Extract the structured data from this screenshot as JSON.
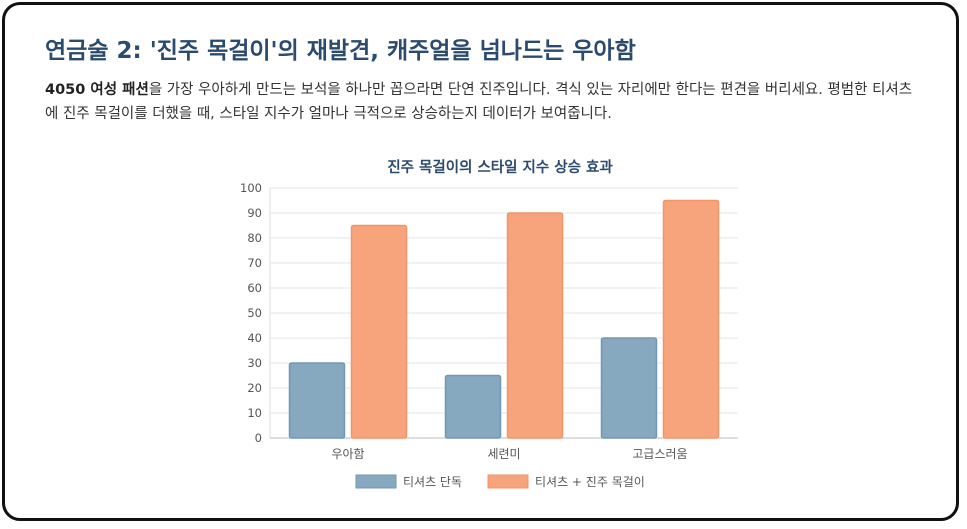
{
  "heading": "연금술 2: '진주 목걸이'의 재발견, 캐주얼을 넘나드는 우아함",
  "description": {
    "bold": "4050 여성 패션",
    "rest": "을 가장 우아하게 만드는 보석을 하나만 꼽으라면 단연 진주입니다. 격식 있는 자리에만 한다는 편견을 버리세요. 평범한 티셔츠에 진주 목걸이를 더했을 때, 스타일 지수가 얼마나 극적으로 상승하는지 데이터가 보여줍니다."
  },
  "colors": {
    "series1": "#87a9c0",
    "series2": "#f7a47c",
    "title": "#2a4a6e"
  },
  "chart_data": {
    "type": "bar",
    "title": "진주 목걸이의 스타일 지수 상승 효과",
    "categories": [
      "우아함",
      "세련미",
      "고급스러움"
    ],
    "series": [
      {
        "name": "티셔츠 단독",
        "values": [
          30,
          25,
          40
        ]
      },
      {
        "name": "티셔츠 + 진주 목걸이",
        "values": [
          85,
          90,
          95
        ]
      }
    ],
    "ylim": [
      0,
      100
    ],
    "yticks": [
      0,
      10,
      20,
      30,
      40,
      50,
      60,
      70,
      80,
      90,
      100
    ],
    "grid": true,
    "legend": "bottom"
  }
}
